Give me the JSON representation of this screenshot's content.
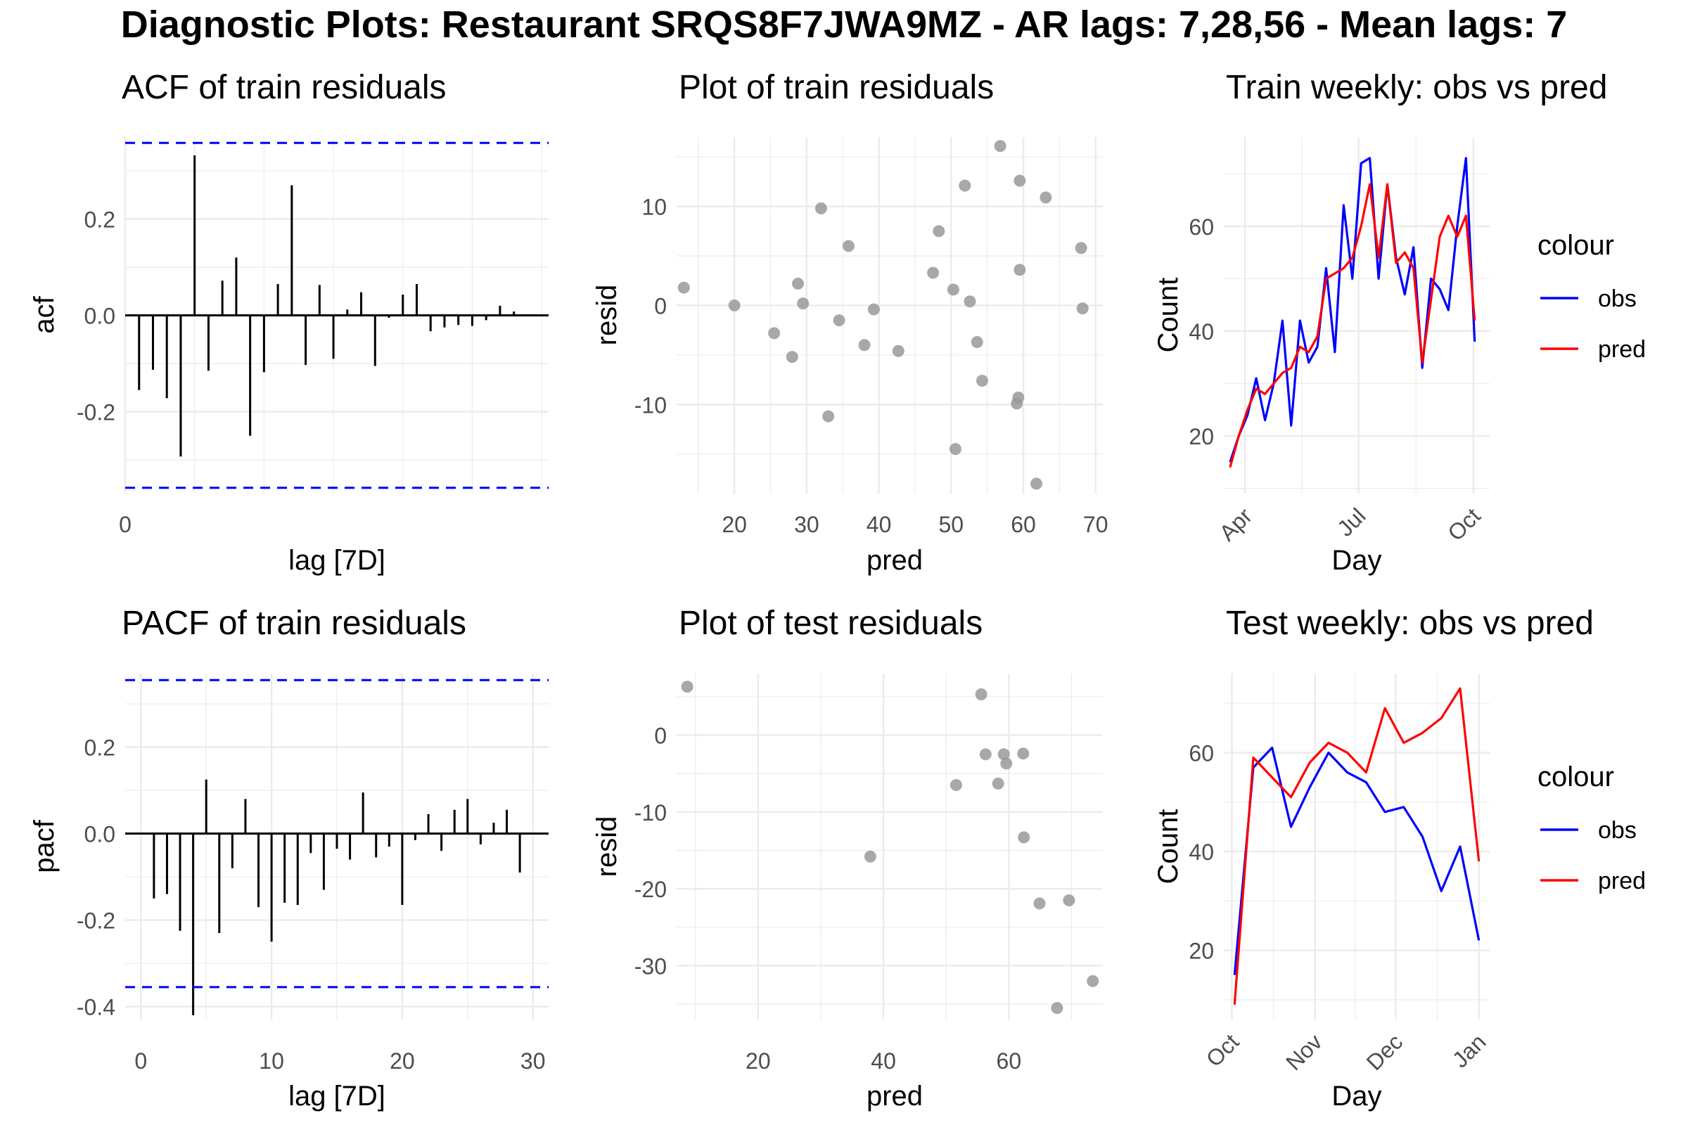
{
  "figure": {
    "title": "Diagnostic Plots: Restaurant SRQS8F7JWA9MZ - AR lags: 7,28,56 - Mean lags: 7"
  },
  "colors": {
    "obs": "#0000ff",
    "pred": "#ff0000",
    "points": "#999999",
    "ci": "#0000ff",
    "stems": "#000000",
    "grid": "#ebebeb"
  },
  "chart_data": [
    {
      "id": "acf",
      "type": "bar",
      "title": "ACF of train residuals",
      "xlabel": "lag [7D]",
      "ylabel": "acf",
      "xlim": [
        0,
        30.5
      ],
      "ylim": [
        -0.37,
        0.37
      ],
      "x_ticks": [
        0
      ],
      "y_ticks": [
        -0.2,
        0.0,
        0.2
      ],
      "y_tick_labels": [
        "-0.2",
        "0.0",
        "0.2"
      ],
      "ci": 0.358,
      "x": [
        1,
        2,
        3,
        4,
        5,
        6,
        7,
        8,
        9,
        10,
        11,
        12,
        13,
        14,
        15,
        16,
        17,
        18,
        19,
        20,
        21,
        22,
        23,
        24,
        25,
        26,
        27,
        28,
        29
      ],
      "values": [
        -0.155,
        -0.113,
        -0.172,
        -0.293,
        0.332,
        -0.115,
        0.072,
        0.12,
        -0.25,
        -0.118,
        0.065,
        0.27,
        -0.103,
        0.063,
        -0.09,
        0.012,
        0.048,
        -0.105,
        -0.005,
        0.043,
        0.065,
        -0.033,
        -0.025,
        -0.02,
        -0.022,
        -0.01,
        0.02,
        0.008,
        -0.002
      ]
    },
    {
      "id": "pacf",
      "type": "bar",
      "title": "PACF of train residuals",
      "xlabel": "lag [7D]",
      "ylabel": "pacf",
      "xlim": [
        -1.2,
        31.2
      ],
      "ylim": [
        -0.43,
        0.37
      ],
      "x_ticks": [
        0,
        10,
        20,
        30
      ],
      "y_ticks": [
        -0.4,
        -0.2,
        0.0,
        0.2
      ],
      "y_tick_labels": [
        "-0.4",
        "-0.2",
        "0.0",
        "0.2"
      ],
      "ci": 0.355,
      "x": [
        1,
        2,
        3,
        4,
        5,
        6,
        7,
        8,
        9,
        10,
        11,
        12,
        13,
        14,
        15,
        16,
        17,
        18,
        19,
        20,
        21,
        22,
        23,
        24,
        25,
        26,
        27,
        28,
        29
      ],
      "values": [
        -0.15,
        -0.14,
        -0.225,
        -0.42,
        0.125,
        -0.23,
        -0.08,
        0.08,
        -0.17,
        -0.25,
        -0.16,
        -0.165,
        -0.045,
        -0.13,
        -0.035,
        -0.06,
        0.095,
        -0.055,
        -0.03,
        -0.165,
        -0.015,
        0.045,
        -0.04,
        0.055,
        0.08,
        -0.025,
        0.025,
        0.055,
        -0.09
      ]
    },
    {
      "id": "train-resid",
      "type": "scatter",
      "title": "Plot of train residuals",
      "xlabel": "pred",
      "ylabel": "resid",
      "xlim": [
        12,
        71
      ],
      "ylim": [
        -19,
        17
      ],
      "x_ticks": [
        20,
        30,
        40,
        50,
        60,
        70
      ],
      "y_ticks": [
        -10,
        0,
        10
      ],
      "points": [
        [
          13,
          1.8
        ],
        [
          20,
          0
        ],
        [
          25.5,
          -2.8
        ],
        [
          28,
          -5.2
        ],
        [
          28.8,
          2.2
        ],
        [
          29.5,
          0.2
        ],
        [
          32,
          9.8
        ],
        [
          33,
          -11.2
        ],
        [
          34.5,
          -1.5
        ],
        [
          35.8,
          6
        ],
        [
          38,
          -4
        ],
        [
          39.3,
          -0.4
        ],
        [
          42.7,
          -4.6
        ],
        [
          47.5,
          3.3
        ],
        [
          48.3,
          7.5
        ],
        [
          50.3,
          1.6
        ],
        [
          50.6,
          -14.5
        ],
        [
          51.9,
          12.1
        ],
        [
          52.6,
          0.4
        ],
        [
          53.6,
          -3.7
        ],
        [
          54.3,
          -7.6
        ],
        [
          56.8,
          16.1
        ],
        [
          59.1,
          -9.9
        ],
        [
          59.3,
          -9.3
        ],
        [
          59.5,
          12.6
        ],
        [
          59.5,
          3.6
        ],
        [
          61.8,
          -18
        ],
        [
          63.1,
          10.9
        ],
        [
          68,
          5.8
        ],
        [
          68.2,
          -0.3
        ]
      ]
    },
    {
      "id": "test-resid",
      "type": "scatter",
      "title": "Plot of test residuals",
      "xlabel": "pred",
      "ylabel": "resid",
      "xlim": [
        7,
        75
      ],
      "ylim": [
        -37,
        8
      ],
      "x_ticks": [
        20,
        40,
        60
      ],
      "y_ticks": [
        -30,
        -20,
        -10,
        0
      ],
      "points": [
        [
          8.7,
          6.3
        ],
        [
          37.9,
          -15.8
        ],
        [
          51.6,
          -6.5
        ],
        [
          55.6,
          5.3
        ],
        [
          56.3,
          -2.5
        ],
        [
          58.3,
          -6.3
        ],
        [
          59.2,
          -2.5
        ],
        [
          59.6,
          -3.7
        ],
        [
          62.3,
          -2.4
        ],
        [
          62.4,
          -13.3
        ],
        [
          64.9,
          -21.9
        ],
        [
          67.7,
          -35.5
        ],
        [
          69.6,
          -21.5
        ],
        [
          73.4,
          -32
        ]
      ]
    },
    {
      "id": "train-weekly",
      "type": "line",
      "title": "Train weekly: obs vs pred",
      "xlabel": "Day",
      "ylabel": "Count",
      "xlim": [
        "2016-03-15",
        "2016-10-14"
      ],
      "ylim": [
        9,
        77
      ],
      "x_ticks": [
        "2016-04-01",
        "2016-07-01",
        "2016-10-01"
      ],
      "x_tick_labels": [
        "Apr",
        "Jul",
        "Oct"
      ],
      "y_ticks": [
        20,
        40,
        60
      ],
      "legend": {
        "title": "colour",
        "entries": [
          "obs",
          "pred"
        ],
        "position": "right"
      },
      "x": [
        "2016-03-20",
        "2016-03-27",
        "2016-04-03",
        "2016-04-10",
        "2016-04-17",
        "2016-04-24",
        "2016-05-01",
        "2016-05-08",
        "2016-05-15",
        "2016-05-22",
        "2016-05-29",
        "2016-06-05",
        "2016-06-12",
        "2016-06-19",
        "2016-06-26",
        "2016-07-03",
        "2016-07-10",
        "2016-07-17",
        "2016-07-24",
        "2016-07-31",
        "2016-08-07",
        "2016-08-14",
        "2016-08-21",
        "2016-08-28",
        "2016-09-04",
        "2016-09-11",
        "2016-09-18",
        "2016-09-25",
        "2016-10-02"
      ],
      "series": [
        {
          "name": "obs",
          "values": [
            15,
            20,
            24,
            31,
            23,
            30,
            42,
            22,
            42,
            34,
            37,
            52,
            36,
            64,
            50,
            72,
            73,
            50,
            68,
            54,
            47,
            56,
            33,
            50,
            48,
            44,
            60,
            73,
            38
          ]
        },
        {
          "name": "pred",
          "values": [
            14,
            20,
            25,
            29,
            28,
            30,
            32,
            33,
            37,
            36,
            39,
            50,
            51,
            52,
            54,
            60,
            68,
            54,
            68,
            53,
            55,
            52,
            34,
            46,
            58,
            62,
            58,
            62,
            42
          ]
        }
      ]
    },
    {
      "id": "test-weekly",
      "type": "line",
      "title": "Test weekly: obs vs pred",
      "xlabel": "Day",
      "ylabel": "Count",
      "xlim": [
        "2016-09-28",
        "2017-01-05"
      ],
      "ylim": [
        6,
        76
      ],
      "x_ticks": [
        "2016-10-01",
        "2016-11-01",
        "2016-12-01",
        "2017-01-01"
      ],
      "x_tick_labels": [
        "Oct",
        "Nov",
        "Dec",
        "Jan"
      ],
      "y_ticks": [
        20,
        40,
        60
      ],
      "legend": {
        "title": "colour",
        "entries": [
          "obs",
          "pred"
        ],
        "position": "right"
      },
      "x": [
        "2016-10-02",
        "2016-10-09",
        "2016-10-16",
        "2016-10-23",
        "2016-10-30",
        "2016-11-06",
        "2016-11-13",
        "2016-11-20",
        "2016-11-27",
        "2016-12-04",
        "2016-12-11",
        "2016-12-18",
        "2016-12-25",
        "2017-01-01"
      ],
      "series": [
        {
          "name": "obs",
          "values": [
            15,
            57,
            61,
            45,
            53,
            60,
            56,
            54,
            48,
            49,
            43,
            32,
            41,
            22
          ]
        },
        {
          "name": "pred",
          "values": [
            9,
            59,
            55,
            51,
            58,
            62,
            60,
            56,
            69,
            62,
            64,
            67,
            73,
            38
          ]
        }
      ]
    }
  ]
}
